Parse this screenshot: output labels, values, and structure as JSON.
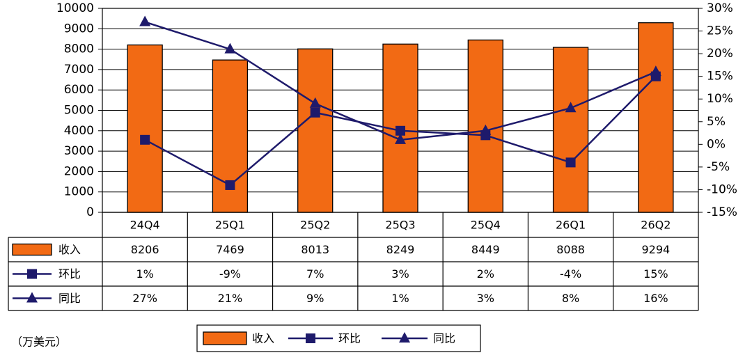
{
  "chart_data": {
    "type": "bar",
    "categories": [
      "24Q4",
      "25Q1",
      "25Q2",
      "25Q3",
      "25Q4",
      "26Q1",
      "26Q2"
    ],
    "ylim": [
      0,
      10000
    ],
    "y_ticks": [
      "0",
      "1000",
      "2000",
      "3000",
      "4000",
      "5000",
      "6000",
      "7000",
      "8000",
      "9000",
      "10000"
    ],
    "y2lim": [
      -15,
      30
    ],
    "y2_ticks": [
      "-15%",
      "-10%",
      "-5%",
      "0%",
      "5%",
      "10%",
      "15%",
      "20%",
      "25%",
      "30%"
    ],
    "series": [
      {
        "name": "收入",
        "type": "bar",
        "axis": "left",
        "values": [
          8206,
          7469,
          8013,
          8249,
          8449,
          8088,
          9294
        ],
        "labels": [
          "8206",
          "7469",
          "8013",
          "8249",
          "8449",
          "8088",
          "9294"
        ],
        "color": "#f26a14"
      },
      {
        "name": "环比",
        "type": "line",
        "marker": "square",
        "axis": "right",
        "values": [
          1,
          -9,
          7,
          3,
          2,
          -4,
          15
        ],
        "labels": [
          "1%",
          "-9%",
          "7%",
          "3%",
          "2%",
          "-4%",
          "15%"
        ],
        "color": "#1e1a6b"
      },
      {
        "name": "同比",
        "type": "line",
        "marker": "triangle",
        "axis": "right",
        "values": [
          27,
          21,
          9,
          1,
          3,
          8,
          16
        ],
        "labels": [
          "27%",
          "21%",
          "9%",
          "1%",
          "3%",
          "8%",
          "16%"
        ],
        "color": "#1e1a6b"
      }
    ],
    "unit_note": "（万美元）",
    "grid": true,
    "legend_position": "bottom"
  }
}
